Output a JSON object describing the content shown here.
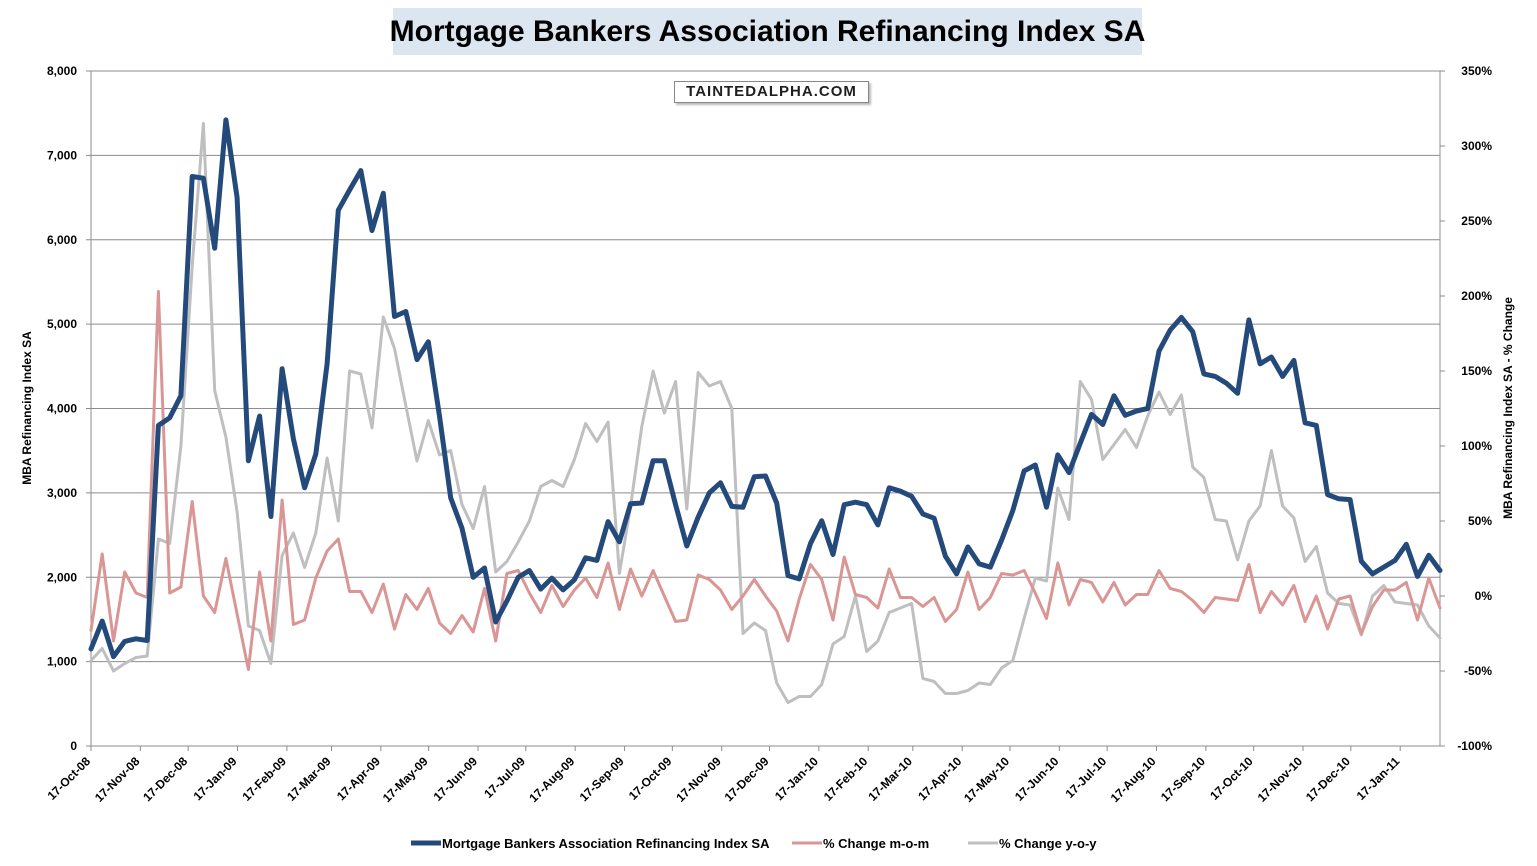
{
  "chart_data": {
    "type": "line",
    "title": "Mortgage Bankers Association Refinancing Index SA",
    "watermark": "TAINTEDALPHA.COM",
    "ylabel_left": "MBA Refinancing Index SA",
    "ylabel_right": "MBA Refinancing Index SA - % Change",
    "y_left_ticks": [
      "0",
      "1,000",
      "2,000",
      "3,000",
      "4,000",
      "5,000",
      "6,000",
      "7,000",
      "8,000"
    ],
    "y_right_ticks": [
      "-100%",
      "-50%",
      "0%",
      "50%",
      "100%",
      "150%",
      "200%",
      "250%",
      "300%",
      "350%"
    ],
    "ylim_left": [
      0,
      8000
    ],
    "ylim_right": [
      -100,
      350
    ],
    "x_tick_labels": [
      "17-Oct-08",
      "17-Nov-08",
      "17-Dec-08",
      "17-Jan-09",
      "17-Feb-09",
      "17-Mar-09",
      "17-Apr-09",
      "17-May-09",
      "17-Jun-09",
      "17-Jul-09",
      "17-Aug-09",
      "17-Sep-09",
      "17-Oct-09",
      "17-Nov-09",
      "17-Dec-09",
      "17-Jan-10",
      "17-Feb-10",
      "17-Mar-10",
      "17-Apr-10",
      "17-May-10",
      "17-Jun-10",
      "17-Jul-10",
      "17-Aug-10",
      "17-Sep-10",
      "17-Oct-10",
      "17-Nov-10",
      "17-Dec-10",
      "17-Jan-11"
    ],
    "x_start": "2008-10-17",
    "x_end": "2011-02-11",
    "grid": "horizontal",
    "legend_position": "bottom",
    "series": [
      {
        "name": "Mortgage Bankers Association Refinancing Index SA",
        "axis": "left",
        "color": "#244a7c",
        "values": [
          1150,
          1480,
          1060,
          1240,
          1270,
          1250,
          3800,
          3890,
          4150,
          6750,
          6730,
          5900,
          7420,
          6500,
          3380,
          3910,
          2720,
          4470,
          3640,
          3060,
          3460,
          4530,
          6350,
          6590,
          6820,
          6110,
          6550,
          5090,
          5150,
          4580,
          4790,
          3910,
          2940,
          2580,
          2000,
          2110,
          1470,
          1720,
          2000,
          2080,
          1860,
          1990,
          1850,
          1970,
          2230,
          2200,
          2660,
          2420,
          2870,
          2880,
          3380,
          3380,
          2860,
          2370,
          2710,
          3000,
          3120,
          2840,
          2830,
          3190,
          3200,
          2880,
          2020,
          1980,
          2400,
          2670,
          2270,
          2860,
          2890,
          2860,
          2620,
          3060,
          3020,
          2960,
          2750,
          2700,
          2250,
          2040,
          2360,
          2160,
          2120,
          2440,
          2790,
          3260,
          3330,
          2830,
          3450,
          3240,
          3590,
          3930,
          3810,
          4150,
          3920,
          3970,
          4000,
          4680,
          4930,
          5080,
          4910,
          4410,
          4380,
          4300,
          4180,
          5050,
          4530,
          4610,
          4380,
          4570,
          3830,
          3800,
          2980,
          2930,
          2920,
          2190,
          2040,
          2120,
          2200,
          2390,
          2010,
          2260,
          2080
        ]
      },
      {
        "name": "% Change m-o-m",
        "axis": "right",
        "color": "#d99694",
        "values": [
          -23,
          28,
          -30,
          16,
          2,
          -1,
          203,
          2,
          6,
          63,
          0,
          -11,
          25,
          -12,
          -49,
          16,
          -30,
          64,
          -19,
          -16,
          12,
          30,
          38,
          3,
          3,
          -11,
          8,
          -22,
          1,
          -9,
          5,
          -18,
          -25,
          -13,
          -24,
          5,
          -30,
          15,
          17,
          2,
          -11,
          7,
          -7,
          4,
          12,
          -1,
          22,
          -9,
          18,
          0,
          17,
          0,
          -17,
          -16,
          14,
          11,
          4,
          -9,
          0,
          11,
          0,
          -10,
          -30,
          -2,
          21,
          11,
          -16,
          26,
          1,
          -1,
          -8,
          18,
          -1,
          -1,
          -7,
          -1,
          -17,
          -9,
          16,
          -9,
          -1,
          15,
          14,
          17,
          2,
          -15,
          22,
          -6,
          11,
          9,
          -4,
          9,
          -6,
          1,
          1,
          17,
          5,
          3,
          -3,
          -11,
          -1,
          -2,
          -3,
          21,
          -11,
          3,
          -6,
          7,
          -17,
          0,
          -22,
          -2,
          0,
          -25,
          -7,
          4,
          4,
          9,
          -16,
          12,
          -8
        ]
      },
      {
        "name": "% Change y-o-y",
        "axis": "right",
        "color": "#bfbfbf",
        "values": [
          -43,
          -35,
          -50,
          -45,
          -41,
          -40,
          38,
          35,
          100,
          220,
          315,
          137,
          106,
          56,
          -20,
          -23,
          -45,
          27,
          42,
          19,
          42,
          92,
          50,
          150,
          148,
          112,
          186,
          165,
          127,
          90,
          117,
          94,
          97,
          61,
          45,
          73,
          16,
          23,
          36,
          50,
          73,
          77,
          73,
          91,
          115,
          103,
          116,
          15,
          60,
          113,
          150,
          122,
          143,
          58,
          149,
          140,
          143,
          125,
          -25,
          -18,
          -23,
          -58,
          -71,
          -67,
          -67,
          -59,
          -32,
          -27,
          0,
          -37,
          -30,
          -11,
          -8,
          -5,
          -55,
          -57,
          -65,
          -65,
          -63,
          -58,
          -59,
          -48,
          -43,
          -15,
          12,
          10,
          72,
          51,
          143,
          131,
          91,
          101,
          111,
          99,
          120,
          136,
          121,
          134,
          86,
          79,
          51,
          50,
          24,
          50,
          60,
          97,
          60,
          52,
          23,
          33,
          2,
          -5,
          -6,
          -26,
          0,
          7,
          -4,
          -5,
          -6,
          -20,
          -28
        ]
      }
    ]
  }
}
